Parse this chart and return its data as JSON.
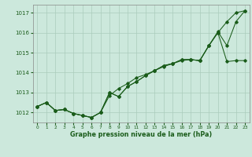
{
  "xlabel": "Graphe pression niveau de la mer (hPa)",
  "xlim": [
    -0.5,
    23.5
  ],
  "ylim": [
    1011.5,
    1017.4
  ],
  "yticks": [
    1012,
    1013,
    1014,
    1015,
    1016,
    1017
  ],
  "xticks": [
    0,
    1,
    2,
    3,
    4,
    5,
    6,
    7,
    8,
    9,
    10,
    11,
    12,
    13,
    14,
    15,
    16,
    17,
    18,
    19,
    20,
    21,
    22,
    23
  ],
  "bg_color": "#cce8dc",
  "grid_color": "#aaccbb",
  "line_color": "#1a5c1a",
  "hours": [
    0,
    1,
    2,
    3,
    4,
    5,
    6,
    7,
    8,
    9,
    10,
    11,
    12,
    13,
    14,
    15,
    16,
    17,
    18,
    19,
    20,
    21,
    22,
    23
  ],
  "series1": [
    1012.3,
    1012.5,
    1012.1,
    1012.15,
    1011.95,
    1011.85,
    1011.75,
    1012.0,
    1012.85,
    1013.2,
    1013.45,
    1013.75,
    1013.9,
    1014.1,
    1014.3,
    1014.45,
    1014.6,
    1014.65,
    1014.6,
    1015.35,
    1016.0,
    1016.55,
    1017.0,
    1017.1
  ],
  "series2": [
    1012.3,
    1012.5,
    1012.1,
    1012.15,
    1011.95,
    1011.85,
    1011.75,
    1012.0,
    1013.0,
    1012.8,
    1013.3,
    1013.55,
    1013.85,
    1014.1,
    1014.35,
    1014.45,
    1014.65,
    1014.65,
    1014.6,
    1015.35,
    1016.0,
    1014.55,
    1014.6,
    1014.6
  ],
  "series3": [
    1012.3,
    1012.5,
    1012.1,
    1012.15,
    1011.95,
    1011.85,
    1011.75,
    1012.0,
    1013.0,
    1012.8,
    1013.3,
    1013.55,
    1013.85,
    1014.1,
    1014.35,
    1014.45,
    1014.65,
    1014.65,
    1014.6,
    1015.35,
    1016.05,
    1015.35,
    1016.55,
    1017.1
  ]
}
